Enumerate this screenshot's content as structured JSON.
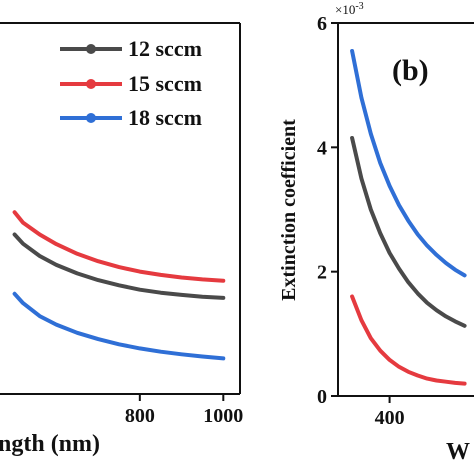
{
  "chart_data": [
    {
      "panel": "a",
      "type": "line",
      "xlabel": "ngth (nm)",
      "x_ticks": [
        800,
        1000
      ],
      "xlim": [
        465,
        1040
      ],
      "ylim": [
        0,
        1
      ],
      "legend": {
        "placement": "top-right"
      },
      "series": [
        {
          "name": "12 sccm",
          "color": "#4a4a4a",
          "x": [
            500,
            520,
            560,
            600,
            650,
            700,
            750,
            800,
            850,
            900,
            950,
            1000
          ],
          "y": [
            0.43,
            0.405,
            0.372,
            0.348,
            0.325,
            0.307,
            0.293,
            0.281,
            0.273,
            0.267,
            0.262,
            0.259
          ]
        },
        {
          "name": "15 sccm",
          "color": "#e53a3f",
          "x": [
            500,
            520,
            560,
            600,
            650,
            700,
            750,
            800,
            850,
            900,
            950,
            1000
          ],
          "y": [
            0.49,
            0.462,
            0.43,
            0.404,
            0.378,
            0.358,
            0.342,
            0.33,
            0.321,
            0.314,
            0.309,
            0.305
          ]
        },
        {
          "name": "18 sccm",
          "color": "#2f6fd6",
          "x": [
            500,
            520,
            560,
            600,
            650,
            700,
            750,
            800,
            850,
            900,
            950,
            1000
          ],
          "y": [
            0.27,
            0.245,
            0.21,
            0.187,
            0.165,
            0.148,
            0.134,
            0.123,
            0.114,
            0.107,
            0.101,
            0.096
          ]
        }
      ]
    },
    {
      "panel": "b",
      "type": "line",
      "panel_label": "(b)",
      "ylabel": "Extinction coefficient",
      "multiplier": "×10",
      "multiplier_exp": "-3",
      "xlabel": "W",
      "x_ticks": [
        400
      ],
      "y_ticks": [
        0,
        2,
        4,
        6
      ],
      "xlim": [
        345,
        490
      ],
      "ylim": [
        0,
        6
      ],
      "series": [
        {
          "name": "12 sccm",
          "color": "#4a4a4a",
          "x": [
            360,
            370,
            380,
            390,
            400,
            410,
            420,
            430,
            440,
            450,
            460,
            470,
            480
          ],
          "y": [
            4.15,
            3.5,
            3.0,
            2.62,
            2.3,
            2.05,
            1.83,
            1.65,
            1.5,
            1.38,
            1.28,
            1.2,
            1.13
          ]
        },
        {
          "name": "15 sccm",
          "color": "#e53a3f",
          "x": [
            360,
            370,
            380,
            390,
            400,
            410,
            420,
            430,
            440,
            450,
            460,
            470,
            480
          ],
          "y": [
            1.6,
            1.22,
            0.93,
            0.73,
            0.58,
            0.47,
            0.39,
            0.33,
            0.28,
            0.25,
            0.23,
            0.21,
            0.2
          ]
        },
        {
          "name": "18 sccm",
          "color": "#2f6fd6",
          "x": [
            360,
            370,
            380,
            390,
            400,
            410,
            420,
            430,
            440,
            450,
            460,
            470,
            480
          ],
          "y": [
            5.55,
            4.8,
            4.22,
            3.75,
            3.38,
            3.07,
            2.82,
            2.6,
            2.42,
            2.27,
            2.14,
            2.03,
            1.94
          ]
        }
      ]
    }
  ]
}
